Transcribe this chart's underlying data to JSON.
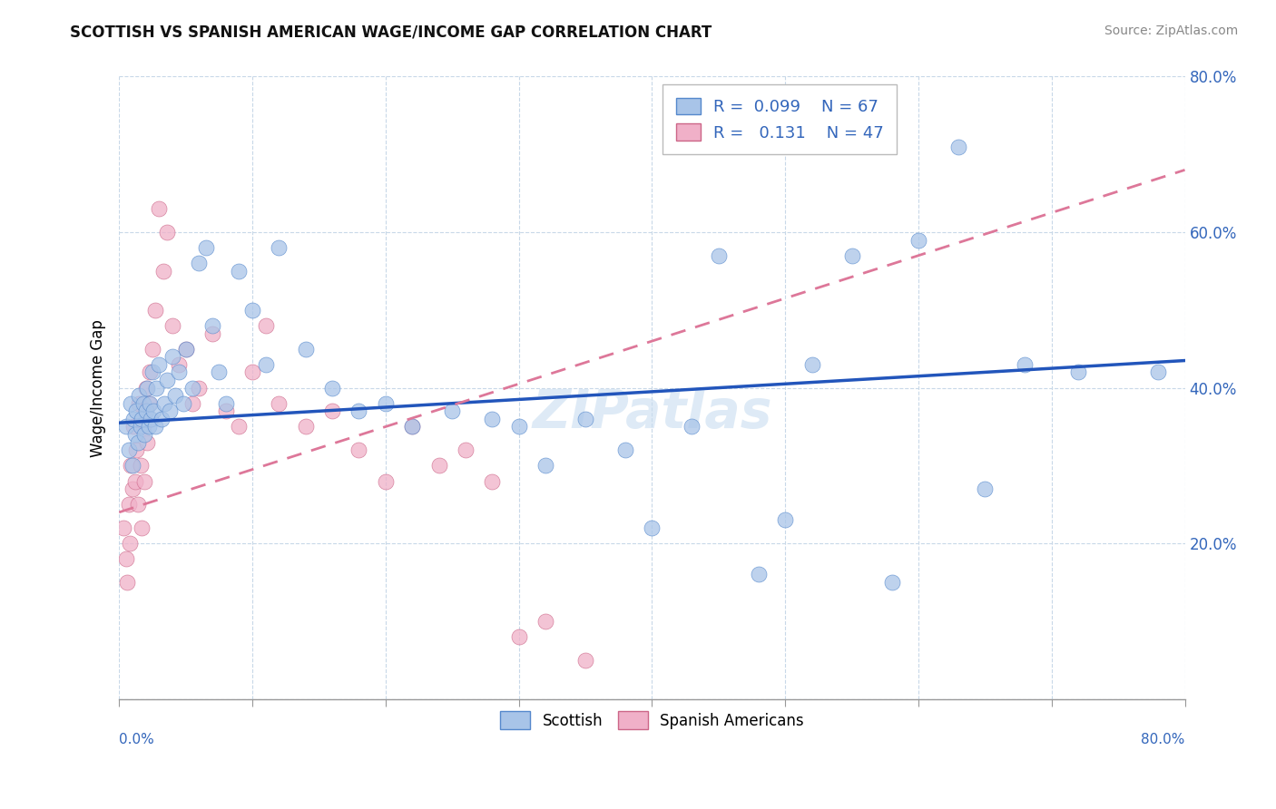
{
  "title": "SCOTTISH VS SPANISH AMERICAN WAGE/INCOME GAP CORRELATION CHART",
  "source": "Source: ZipAtlas.com",
  "ylabel": "Wage/Income Gap",
  "bottom_legend": [
    "Scottish",
    "Spanish Americans"
  ],
  "scottish_fill": "#a8c4e8",
  "scottish_edge": "#5588cc",
  "spanish_fill": "#f0b0c8",
  "spanish_edge": "#cc6688",
  "scottish_line": "#2255bb",
  "spanish_line": "#dd7799",
  "background_color": "#ffffff",
  "grid_color": "#c8d8e8",
  "xlim": [
    0,
    0.8
  ],
  "ylim": [
    0,
    0.8
  ],
  "ytick_color": "#3366bb",
  "xtick_color": "#3366bb",
  "watermark": "ZIPatlas",
  "watermark_color": "#c8ddf0",
  "scottish_x": [
    0.005,
    0.007,
    0.009,
    0.01,
    0.011,
    0.012,
    0.013,
    0.014,
    0.015,
    0.016,
    0.017,
    0.018,
    0.019,
    0.02,
    0.021,
    0.022,
    0.023,
    0.024,
    0.025,
    0.026,
    0.027,
    0.028,
    0.03,
    0.032,
    0.034,
    0.036,
    0.038,
    0.04,
    0.042,
    0.045,
    0.048,
    0.05,
    0.055,
    0.06,
    0.065,
    0.07,
    0.075,
    0.08,
    0.09,
    0.1,
    0.11,
    0.12,
    0.14,
    0.16,
    0.18,
    0.2,
    0.22,
    0.25,
    0.28,
    0.3,
    0.32,
    0.35,
    0.38,
    0.4,
    0.43,
    0.45,
    0.48,
    0.5,
    0.52,
    0.55,
    0.58,
    0.6,
    0.63,
    0.65,
    0.68,
    0.72,
    0.78
  ],
  "scottish_y": [
    0.35,
    0.32,
    0.38,
    0.3,
    0.36,
    0.34,
    0.37,
    0.33,
    0.39,
    0.35,
    0.36,
    0.38,
    0.34,
    0.37,
    0.4,
    0.35,
    0.38,
    0.36,
    0.42,
    0.37,
    0.35,
    0.4,
    0.43,
    0.36,
    0.38,
    0.41,
    0.37,
    0.44,
    0.39,
    0.42,
    0.38,
    0.45,
    0.4,
    0.56,
    0.58,
    0.48,
    0.42,
    0.38,
    0.55,
    0.5,
    0.43,
    0.58,
    0.45,
    0.4,
    0.37,
    0.38,
    0.35,
    0.37,
    0.36,
    0.35,
    0.3,
    0.36,
    0.32,
    0.22,
    0.35,
    0.57,
    0.16,
    0.23,
    0.43,
    0.57,
    0.15,
    0.59,
    0.71,
    0.27,
    0.43,
    0.42,
    0.42
  ],
  "spanish_x": [
    0.003,
    0.005,
    0.006,
    0.007,
    0.008,
    0.009,
    0.01,
    0.011,
    0.012,
    0.013,
    0.014,
    0.015,
    0.016,
    0.017,
    0.018,
    0.019,
    0.02,
    0.021,
    0.022,
    0.023,
    0.025,
    0.027,
    0.03,
    0.033,
    0.036,
    0.04,
    0.045,
    0.05,
    0.055,
    0.06,
    0.07,
    0.08,
    0.09,
    0.1,
    0.11,
    0.12,
    0.14,
    0.16,
    0.18,
    0.2,
    0.22,
    0.24,
    0.26,
    0.28,
    0.3,
    0.32,
    0.35
  ],
  "spanish_y": [
    0.22,
    0.18,
    0.15,
    0.25,
    0.2,
    0.3,
    0.27,
    0.35,
    0.28,
    0.32,
    0.25,
    0.38,
    0.3,
    0.22,
    0.35,
    0.28,
    0.4,
    0.33,
    0.38,
    0.42,
    0.45,
    0.5,
    0.63,
    0.55,
    0.6,
    0.48,
    0.43,
    0.45,
    0.38,
    0.4,
    0.47,
    0.37,
    0.35,
    0.42,
    0.48,
    0.38,
    0.35,
    0.37,
    0.32,
    0.28,
    0.35,
    0.3,
    0.32,
    0.28,
    0.08,
    0.1,
    0.05
  ],
  "scottish_trend_x": [
    0.0,
    0.8
  ],
  "scottish_trend_y": [
    0.355,
    0.435
  ],
  "spanish_trend_x": [
    0.0,
    0.8
  ],
  "spanish_trend_y": [
    0.24,
    0.68
  ]
}
